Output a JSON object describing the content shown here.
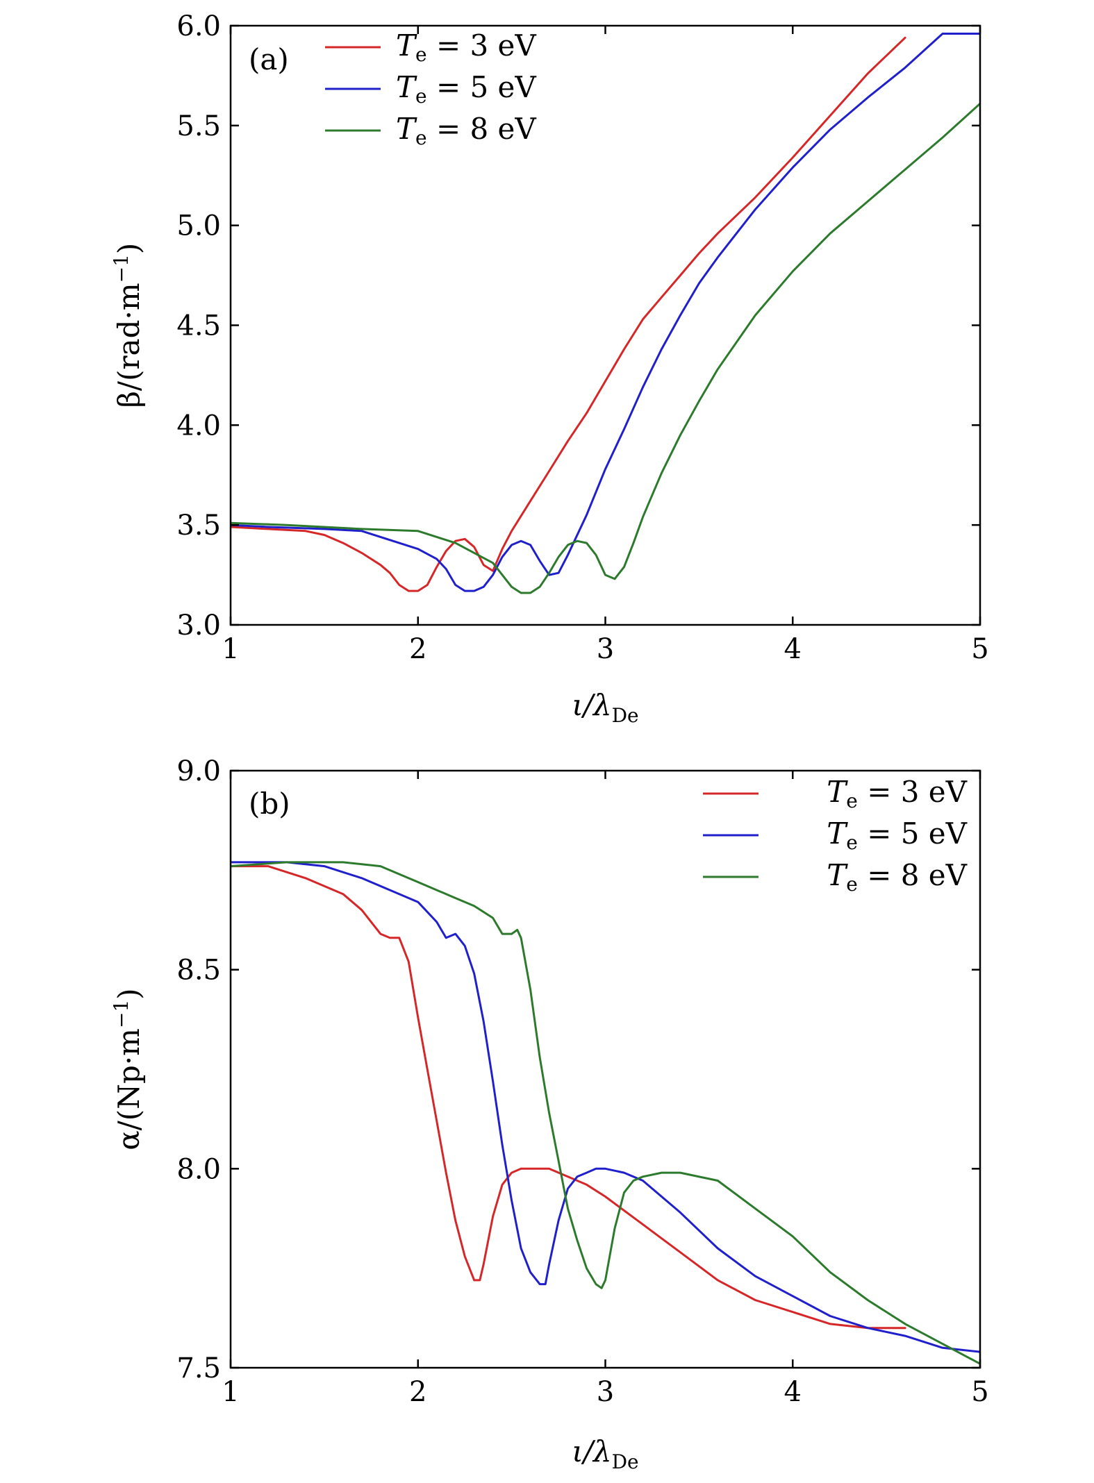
{
  "chart_data": [
    {
      "type": "line",
      "panel_tag": "(a)",
      "xlabel": "ι/λ_De",
      "xlabel_main": "ι/λ",
      "xlabel_sub": "De",
      "ylabel": "β/(rad·m⁻¹)",
      "ylabel_main": "β/(rad·m",
      "ylabel_sup": "−1",
      "ylabel_tail": ")",
      "xlim": [
        1,
        5
      ],
      "ylim": [
        3.0,
        6.0
      ],
      "xticks": [
        1,
        2,
        3,
        4,
        5
      ],
      "xtick_labels": [
        "1",
        "2",
        "3",
        "4",
        "5"
      ],
      "yticks": [
        3.0,
        3.5,
        4.0,
        4.5,
        5.0,
        5.5,
        6.0
      ],
      "ytick_labels": [
        "3.0",
        "3.5",
        "4.0",
        "4.5",
        "5.0",
        "5.5",
        "6.0"
      ],
      "legend_position": "top-left",
      "grid": false,
      "series": [
        {
          "name": "T_e = 3 eV",
          "name_main": "T",
          "name_sub": "e",
          "name_tail": " = 3  eV",
          "color": "#d62728",
          "x": [
            1.0,
            1.2,
            1.4,
            1.5,
            1.6,
            1.7,
            1.8,
            1.85,
            1.9,
            1.95,
            2.0,
            2.05,
            2.1,
            2.15,
            2.2,
            2.25,
            2.3,
            2.35,
            2.4,
            2.45,
            2.5,
            2.6,
            2.7,
            2.8,
            2.9,
            3.0,
            3.1,
            3.2,
            3.3,
            3.4,
            3.5,
            3.6,
            3.8,
            4.0,
            4.2,
            4.4,
            4.6
          ],
          "y": [
            3.49,
            3.48,
            3.47,
            3.45,
            3.41,
            3.36,
            3.3,
            3.26,
            3.2,
            3.17,
            3.17,
            3.2,
            3.29,
            3.37,
            3.42,
            3.43,
            3.39,
            3.3,
            3.27,
            3.38,
            3.47,
            3.62,
            3.77,
            3.92,
            4.06,
            4.22,
            4.38,
            4.53,
            4.64,
            4.75,
            4.86,
            4.96,
            5.14,
            5.34,
            5.55,
            5.76,
            5.94
          ]
        },
        {
          "name": "T_e = 5 eV",
          "name_main": "T",
          "name_sub": "e",
          "name_tail": " = 5  eV",
          "color": "#1f1fcc",
          "x": [
            1.0,
            1.2,
            1.5,
            1.7,
            1.8,
            1.9,
            2.0,
            2.1,
            2.15,
            2.2,
            2.25,
            2.3,
            2.35,
            2.4,
            2.45,
            2.5,
            2.55,
            2.6,
            2.65,
            2.7,
            2.75,
            2.8,
            2.9,
            3.0,
            3.1,
            3.2,
            3.3,
            3.4,
            3.5,
            3.6,
            3.8,
            4.0,
            4.2,
            4.4,
            4.6,
            4.8,
            5.0
          ],
          "y": [
            3.5,
            3.49,
            3.48,
            3.47,
            3.44,
            3.41,
            3.38,
            3.33,
            3.28,
            3.2,
            3.17,
            3.17,
            3.19,
            3.25,
            3.34,
            3.4,
            3.42,
            3.4,
            3.32,
            3.25,
            3.26,
            3.35,
            3.55,
            3.78,
            3.98,
            4.19,
            4.38,
            4.55,
            4.71,
            4.84,
            5.08,
            5.29,
            5.48,
            5.64,
            5.79,
            5.96,
            5.96
          ]
        },
        {
          "name": "T_e = 8 eV",
          "name_main": "T",
          "name_sub": "e",
          "name_tail": " = 8  eV",
          "color": "#2c7a2c",
          "x": [
            1.0,
            1.3,
            1.7,
            2.0,
            2.1,
            2.2,
            2.3,
            2.4,
            2.45,
            2.5,
            2.55,
            2.6,
            2.65,
            2.7,
            2.75,
            2.8,
            2.85,
            2.9,
            2.95,
            3.0,
            3.05,
            3.1,
            3.15,
            3.2,
            3.3,
            3.4,
            3.5,
            3.6,
            3.8,
            4.0,
            4.2,
            4.4,
            4.6,
            4.8,
            5.0
          ],
          "y": [
            3.51,
            3.5,
            3.48,
            3.47,
            3.44,
            3.41,
            3.36,
            3.31,
            3.25,
            3.19,
            3.16,
            3.16,
            3.19,
            3.26,
            3.34,
            3.4,
            3.42,
            3.41,
            3.35,
            3.25,
            3.23,
            3.29,
            3.41,
            3.54,
            3.76,
            3.95,
            4.12,
            4.28,
            4.55,
            4.77,
            4.96,
            5.12,
            5.28,
            5.44,
            5.61
          ]
        }
      ]
    },
    {
      "type": "line",
      "panel_tag": "(b)",
      "xlabel": "ι/λ_De",
      "xlabel_main": "ι/λ",
      "xlabel_sub": "De",
      "ylabel": "α/(Np·m⁻¹)",
      "ylabel_main": "α/(Np·m",
      "ylabel_sup": "−1",
      "ylabel_tail": ")",
      "xlim": [
        1,
        5
      ],
      "ylim": [
        7.5,
        9.0
      ],
      "xticks": [
        1,
        2,
        3,
        4,
        5
      ],
      "xtick_labels": [
        "1",
        "2",
        "3",
        "4",
        "5"
      ],
      "yticks": [
        7.5,
        8.0,
        8.5,
        9.0
      ],
      "ytick_labels": [
        "7.5",
        "8.0",
        "8.5",
        "9.0"
      ],
      "legend_position": "top-right",
      "grid": false,
      "series": [
        {
          "name": "T_e = 3 eV",
          "name_main": "T",
          "name_sub": "e",
          "name_tail": " = 3  eV",
          "color": "#d62728",
          "x": [
            1.0,
            1.2,
            1.4,
            1.6,
            1.7,
            1.8,
            1.85,
            1.9,
            1.95,
            2.0,
            2.05,
            2.1,
            2.15,
            2.2,
            2.25,
            2.3,
            2.33,
            2.35,
            2.4,
            2.45,
            2.5,
            2.55,
            2.6,
            2.7,
            2.8,
            2.9,
            3.0,
            3.2,
            3.4,
            3.6,
            3.8,
            4.0,
            4.2,
            4.4,
            4.6
          ],
          "y": [
            8.76,
            8.76,
            8.73,
            8.69,
            8.65,
            8.59,
            8.58,
            8.58,
            8.52,
            8.38,
            8.25,
            8.12,
            7.99,
            7.87,
            7.78,
            7.72,
            7.72,
            7.76,
            7.88,
            7.96,
            7.99,
            8.0,
            8.0,
            8.0,
            7.98,
            7.96,
            7.93,
            7.86,
            7.79,
            7.72,
            7.67,
            7.64,
            7.61,
            7.6,
            7.6
          ]
        },
        {
          "name": "T_e = 5 eV",
          "name_main": "T",
          "name_sub": "e",
          "name_tail": " = 5  eV",
          "color": "#1f1fcc",
          "x": [
            1.0,
            1.3,
            1.5,
            1.7,
            1.9,
            2.0,
            2.1,
            2.15,
            2.2,
            2.25,
            2.3,
            2.35,
            2.4,
            2.45,
            2.5,
            2.55,
            2.6,
            2.65,
            2.68,
            2.7,
            2.75,
            2.8,
            2.85,
            2.9,
            2.95,
            3.0,
            3.1,
            3.2,
            3.4,
            3.6,
            3.8,
            4.0,
            4.2,
            4.4,
            4.6,
            4.8,
            5.0
          ],
          "y": [
            8.77,
            8.77,
            8.76,
            8.73,
            8.69,
            8.67,
            8.62,
            8.58,
            8.59,
            8.56,
            8.49,
            8.37,
            8.22,
            8.06,
            7.92,
            7.8,
            7.74,
            7.71,
            7.71,
            7.76,
            7.87,
            7.95,
            7.98,
            7.99,
            8.0,
            8.0,
            7.99,
            7.97,
            7.89,
            7.8,
            7.73,
            7.68,
            7.63,
            7.6,
            7.58,
            7.55,
            7.54
          ]
        },
        {
          "name": "T_e = 8 eV",
          "name_main": "T",
          "name_sub": "e",
          "name_tail": " = 8  eV",
          "color": "#2c7a2c",
          "x": [
            1.0,
            1.3,
            1.6,
            1.8,
            2.0,
            2.2,
            2.3,
            2.4,
            2.45,
            2.5,
            2.53,
            2.55,
            2.6,
            2.65,
            2.7,
            2.75,
            2.8,
            2.85,
            2.9,
            2.95,
            2.98,
            3.0,
            3.05,
            3.1,
            3.15,
            3.2,
            3.3,
            3.4,
            3.6,
            3.8,
            4.0,
            4.2,
            4.4,
            4.6,
            4.8,
            5.0
          ],
          "y": [
            8.76,
            8.77,
            8.77,
            8.76,
            8.72,
            8.68,
            8.66,
            8.63,
            8.59,
            8.59,
            8.6,
            8.58,
            8.45,
            8.28,
            8.14,
            8.02,
            7.9,
            7.82,
            7.75,
            7.71,
            7.7,
            7.72,
            7.85,
            7.94,
            7.97,
            7.98,
            7.99,
            7.99,
            7.97,
            7.9,
            7.83,
            7.74,
            7.67,
            7.61,
            7.56,
            7.51
          ]
        }
      ]
    }
  ]
}
